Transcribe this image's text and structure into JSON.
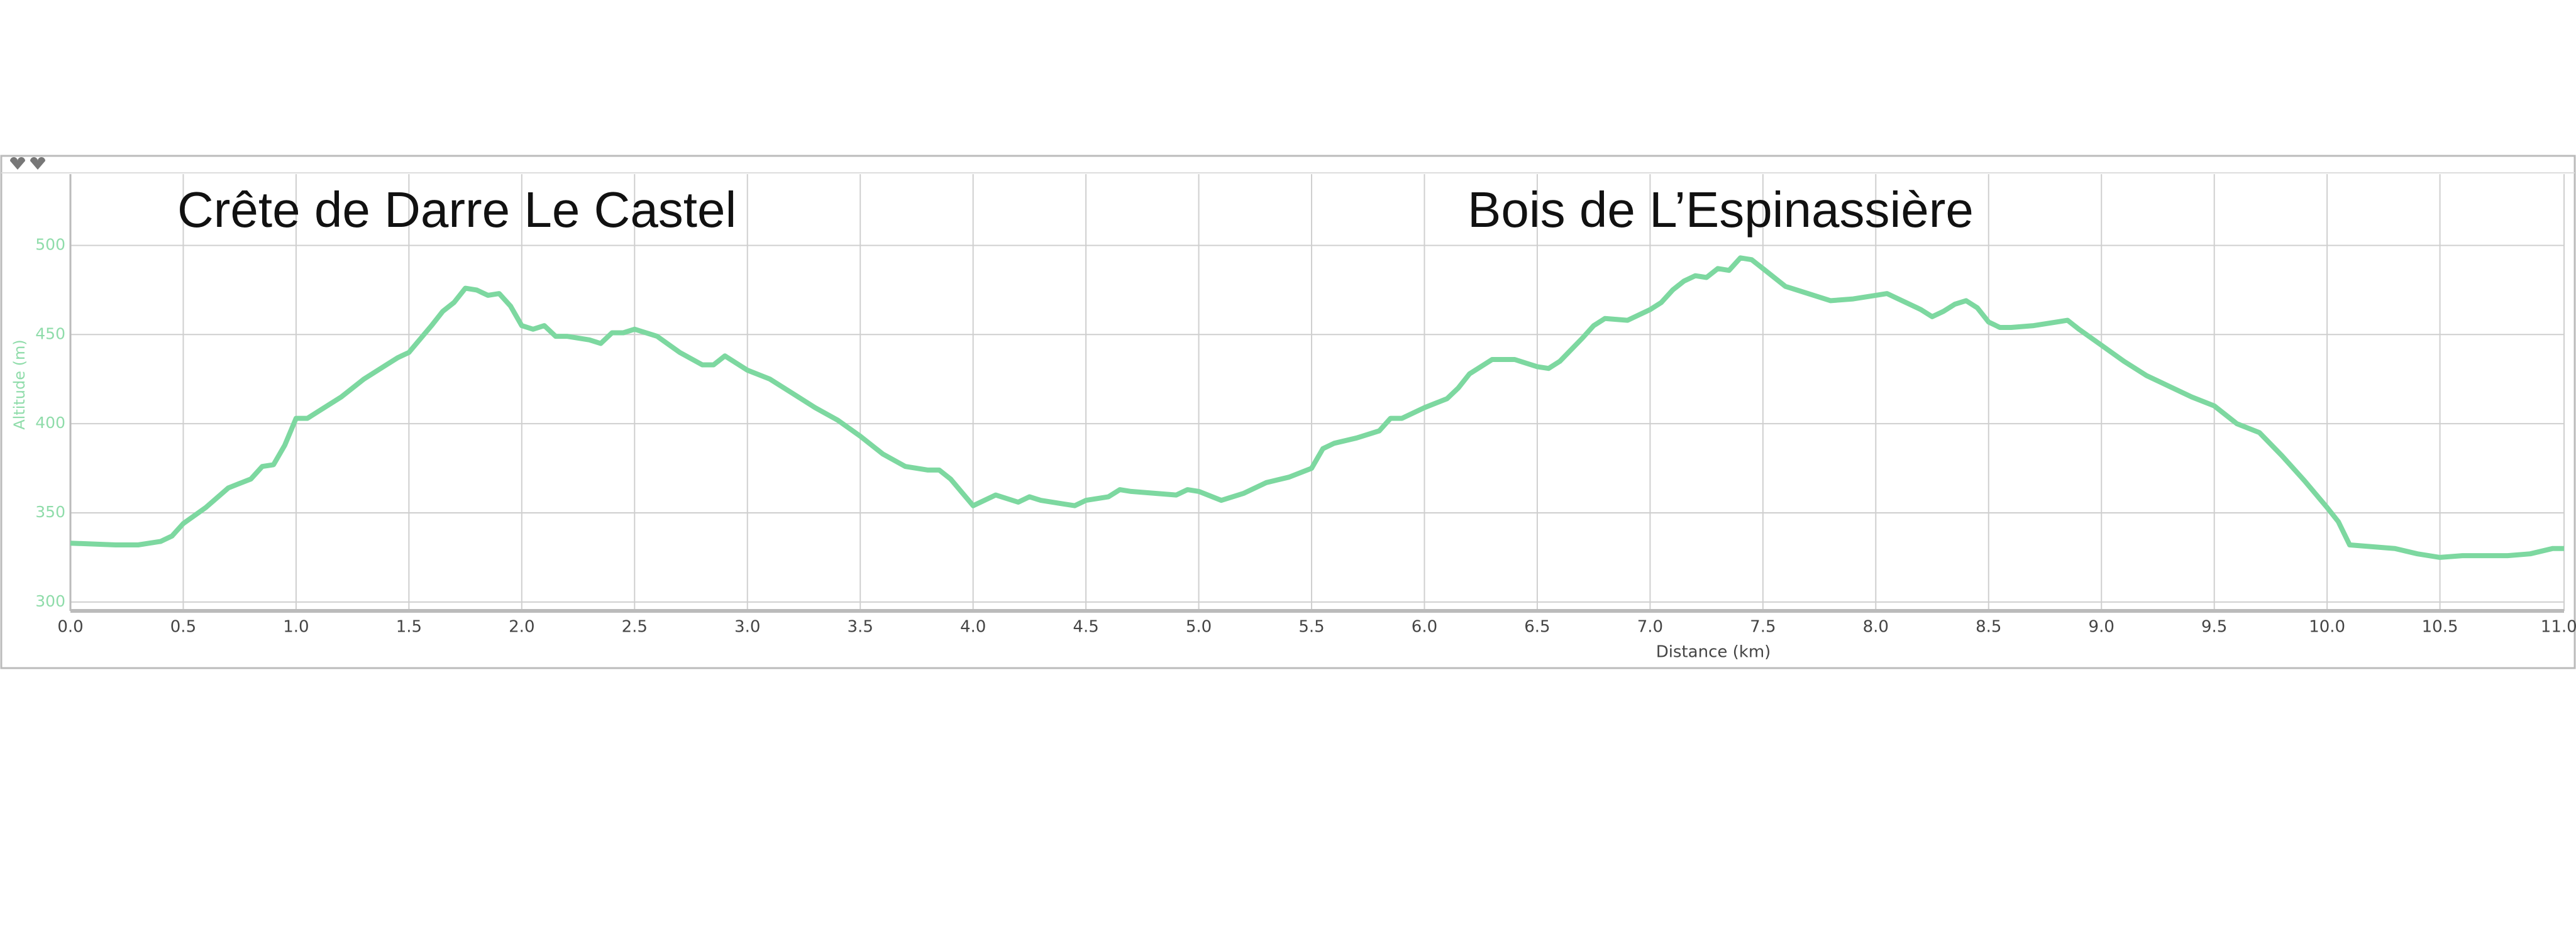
{
  "chart_data": {
    "type": "line",
    "annotations": [
      "Crête de Darre Le Castel",
      "Bois de L’Espinassière"
    ],
    "xlabel": "Distance (km)",
    "ylabel": "Altitude (m)",
    "x": [
      0.0,
      0.2,
      0.3,
      0.4,
      0.45,
      0.5,
      0.6,
      0.7,
      0.8,
      0.85,
      0.9,
      0.95,
      1.0,
      1.05,
      1.1,
      1.2,
      1.3,
      1.4,
      1.45,
      1.5,
      1.6,
      1.65,
      1.7,
      1.75,
      1.8,
      1.85,
      1.9,
      1.95,
      2.0,
      2.05,
      2.1,
      2.15,
      2.2,
      2.3,
      2.35,
      2.4,
      2.45,
      2.5,
      2.6,
      2.7,
      2.8,
      2.85,
      2.9,
      3.0,
      3.1,
      3.2,
      3.3,
      3.4,
      3.5,
      3.6,
      3.7,
      3.8,
      3.85,
      3.9,
      4.0,
      4.05,
      4.1,
      4.2,
      4.25,
      4.3,
      4.4,
      4.45,
      4.5,
      4.6,
      4.65,
      4.7,
      4.9,
      4.95,
      5.0,
      5.1,
      5.2,
      5.3,
      5.4,
      5.5,
      5.55,
      5.6,
      5.7,
      5.8,
      5.85,
      5.9,
      6.0,
      6.1,
      6.15,
      6.2,
      6.3,
      6.4,
      6.5,
      6.55,
      6.6,
      6.7,
      6.75,
      6.8,
      6.9,
      7.0,
      7.05,
      7.1,
      7.15,
      7.2,
      7.25,
      7.3,
      7.35,
      7.4,
      7.45,
      7.5,
      7.6,
      7.7,
      7.8,
      7.9,
      8.0,
      8.05,
      8.1,
      8.2,
      8.25,
      8.3,
      8.35,
      8.4,
      8.45,
      8.5,
      8.55,
      8.6,
      8.7,
      8.8,
      8.85,
      8.9,
      9.0,
      9.1,
      9.2,
      9.3,
      9.4,
      9.5,
      9.6,
      9.7,
      9.8,
      9.9,
      10.0,
      10.05,
      10.1,
      10.2,
      10.3,
      10.4,
      10.5,
      10.6,
      10.7,
      10.8,
      10.9,
      11.0,
      11.05
    ],
    "series": [
      {
        "name": "Altitude (m)",
        "color": "#7dd8a0",
        "values": [
          333,
          332,
          332,
          334,
          337,
          344,
          353,
          364,
          369,
          376,
          377,
          388,
          403,
          403,
          407,
          415,
          425,
          433,
          437,
          440,
          455,
          463,
          468,
          476,
          475,
          472,
          473,
          466,
          455,
          453,
          455,
          449,
          449,
          447,
          445,
          451,
          451,
          453,
          449,
          440,
          433,
          433,
          438,
          430,
          425,
          417,
          409,
          402,
          393,
          383,
          376,
          374,
          374,
          369,
          354,
          357,
          360,
          356,
          359,
          357,
          355,
          354,
          357,
          359,
          363,
          362,
          360,
          363,
          362,
          357,
          361,
          367,
          370,
          375,
          386,
          389,
          392,
          396,
          403,
          403,
          409,
          414,
          420,
          428,
          436,
          436,
          432,
          431,
          435,
          448,
          455,
          459,
          458,
          464,
          468,
          475,
          480,
          483,
          482,
          487,
          486,
          493,
          492,
          487,
          477,
          473,
          469,
          470,
          472,
          473,
          470,
          464,
          460,
          463,
          467,
          469,
          465,
          457,
          454,
          454,
          455,
          457,
          458,
          453,
          444,
          435,
          427,
          421,
          415,
          410,
          400,
          395,
          382,
          368,
          353,
          345,
          332,
          331,
          330,
          327,
          325,
          326,
          326,
          326,
          327,
          330,
          330
        ]
      }
    ],
    "xlim": [
      0,
      11.05
    ],
    "ylim": [
      295,
      540
    ],
    "xticks": [
      {
        "value": 0,
        "label": "0.0"
      },
      0.5,
      {
        "value": 1,
        "label": "1.0"
      },
      1.5,
      {
        "value": 2,
        "label": "2.0"
      },
      2.5,
      {
        "value": 3,
        "label": "3.0"
      },
      3.5,
      {
        "value": 4,
        "label": "4.0"
      },
      4.5,
      {
        "value": 5,
        "label": "5.0"
      },
      5.5,
      {
        "value": 6,
        "label": "6.0"
      },
      6.5,
      {
        "value": 7,
        "label": "7.0"
      },
      7.5,
      {
        "value": 8,
        "label": "8.0"
      },
      8.5,
      {
        "value": 9,
        "label": "9.0"
      },
      9.5,
      {
        "value": 10,
        "label": "10.0"
      },
      10.5,
      11.05
    ],
    "yticks": [
      300,
      350,
      400,
      450,
      500
    ],
    "grid": true
  }
}
